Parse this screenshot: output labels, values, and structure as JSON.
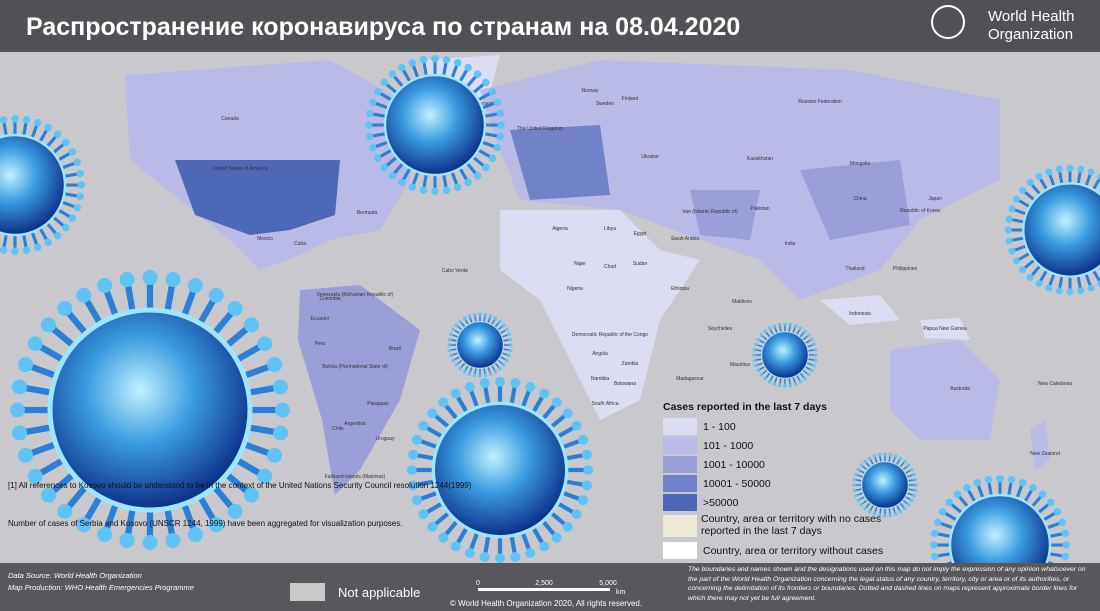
{
  "header": {
    "title": "Распространение коронавируса по странам на 08.04.2020",
    "logo_line1": "World Health",
    "logo_line2": "Organization"
  },
  "map_labels": [
    "Canada",
    "United States of America",
    "Mexico",
    "Cuba",
    "Colombia",
    "Venezuela (Bolivarian Republic of)",
    "Ecuador",
    "Peru",
    "Brazil",
    "Bolivia (Plurinational State of)",
    "Chile",
    "Argentina",
    "Paraguay",
    "Uruguay",
    "Falkland Islands (Malvinas)",
    "Faroe Islands",
    "Norway",
    "Sweden",
    "Finland",
    "The United Kingdom",
    "Ukraine",
    "Russian Federation",
    "Kazakhstan",
    "Mongolia",
    "China",
    "Japan",
    "Republic of Korea",
    "Iran (Islamic Republic of)",
    "Saudi Arabia",
    "India",
    "Pakistan",
    "Algeria",
    "Libya",
    "Egypt",
    "Niger",
    "Chad",
    "Sudan",
    "Ethiopia",
    "Nigeria",
    "Democratic Republic of the Congo",
    "Angola",
    "Zambia",
    "Namibia",
    "Botswana",
    "South Africa",
    "Madagascar",
    "Indonesia",
    "Papua New Guinea",
    "Australia",
    "New Zealand",
    "New Caledonia",
    "Philippines",
    "Thailand",
    "Bermuda",
    "Cabo Verde",
    "Maldives",
    "Seychelles",
    "Mauritius"
  ],
  "legend": {
    "title": "Cases reported in the last 7 days",
    "items": [
      "1 - 100",
      "101 - 1000",
      "1001 - 10000",
      "10001 - 50000",
      ">50000",
      "Country, area or territory with no cases reported in the last 7 days",
      "Country, area or territory without cases"
    ]
  },
  "notes": {
    "note1": "[1] All references to Kosovo should be understood to be in the context of the United Nations Security Council resolution 1244(1999)",
    "note2": "Number of cases of Serbia and Kosovo (UNSCR 1244, 1999) have been aggregated for visualization purposes."
  },
  "footer": {
    "data_source": "Data Source: World Health Organization",
    "map_production": "Map Production: WHO Health Emergencies Programme",
    "not_applicable": "Not applicable",
    "scale": [
      "0",
      "2,500",
      "5,000"
    ],
    "scale_unit": "km",
    "copyright": "© World Health Organization 2020, All rights reserved.",
    "disclaimer": "The boundaries and names shown and the designations used on this map do not imply the expression of any opinion whatsoever on the part of the World Health Organization concerning the legal status of any country, territory, city or area or of its authorities, or concerning the delimitation of its frontiers or boundaries. Dotted and dashed lines on maps represent approximate border lines for which there may not yet be full agreement."
  }
}
